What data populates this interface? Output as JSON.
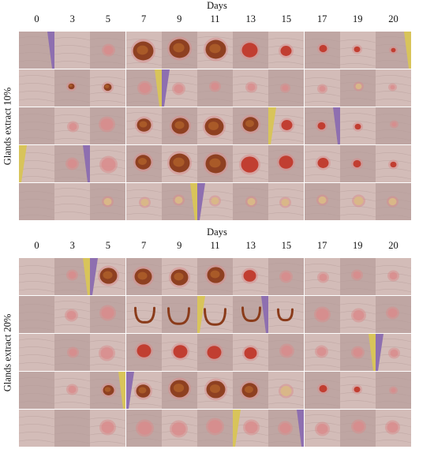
{
  "days_title": "Days",
  "day_labels": [
    "0",
    "3",
    "5",
    "7",
    "9",
    "11",
    "13",
    "15",
    "17",
    "19",
    "20"
  ],
  "panels": [
    {
      "id": "top",
      "row_label": "Glands extract 10%"
    },
    {
      "id": "bottom",
      "row_label": "Glands extract 20%"
    }
  ],
  "colors": {
    "skin": "#d3bcb8",
    "skin_dark": "#bfa6a3",
    "purple_bg": "#8e6fb0",
    "yellow_bg": "#d8c45a",
    "wound_dark": "#8a3b1a",
    "wound_red": "#c0392b",
    "wound_pink": "#d98b8b",
    "grid_line": "#6b5aa6"
  }
}
